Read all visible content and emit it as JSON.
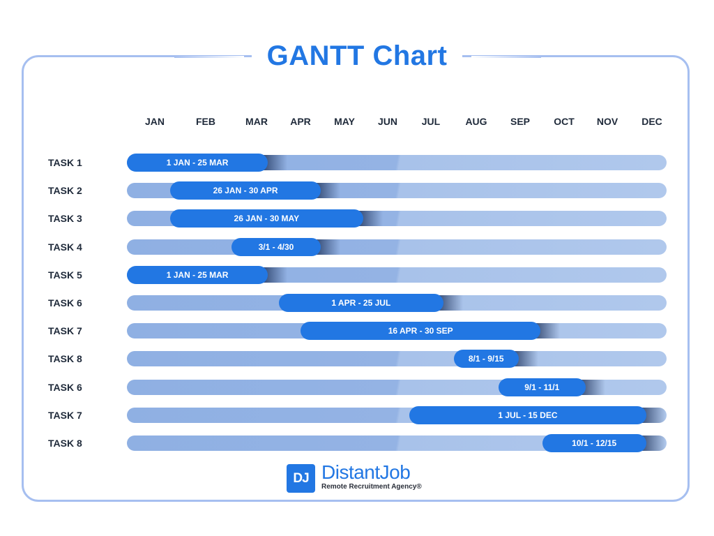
{
  "title": "GANTT Chart",
  "logo": {
    "mark": "DJ",
    "name": "DistantJob",
    "tagline": "Remote Recruitment Agency®"
  },
  "colors": {
    "bar": "#2277e3",
    "track": "#94b3e4",
    "title": "#2277e3",
    "frame": "#a6bff0"
  },
  "chart_data": {
    "type": "gantt",
    "title": "GANTT Chart",
    "months": [
      "JAN",
      "FEB",
      "MAR",
      "APR",
      "MAY",
      "JUN",
      "JUL",
      "AUG",
      "SEP",
      "OCT",
      "NOV",
      "DEC"
    ],
    "tasks": [
      {
        "name": "TASK 1",
        "label": "1 JAN - 25 MAR",
        "start": "01-01",
        "end": "03-25"
      },
      {
        "name": "TASK 2",
        "label": "26 JAN - 30 APR",
        "start": "01-26",
        "end": "04-30"
      },
      {
        "name": "TASK 3",
        "label": "26 JAN - 30 MAY",
        "start": "01-26",
        "end": "05-30"
      },
      {
        "name": "TASK 4",
        "label": "3/1 - 4/30",
        "start": "03-01",
        "end": "04-30"
      },
      {
        "name": "TASK 5",
        "label": "1 JAN - 25 MAR",
        "start": "01-01",
        "end": "03-25"
      },
      {
        "name": "TASK 6",
        "label": "1 APR - 25 JUL",
        "start": "04-01",
        "end": "07-25"
      },
      {
        "name": "TASK 7",
        "label": "16 APR - 30 SEP",
        "start": "04-16",
        "end": "09-30"
      },
      {
        "name": "TASK 8",
        "label": "8/1 - 9/15",
        "start": "08-01",
        "end": "09-15"
      },
      {
        "name": "TASK 6",
        "label": "9/1 - 11/1",
        "start": "09-01",
        "end": "11-01"
      },
      {
        "name": "TASK 7",
        "label": "1 JUL - 15 DEC",
        "start": "07-01",
        "end": "12-15"
      },
      {
        "name": "TASK 8",
        "label": "10/1 - 12/15",
        "start": "10-01",
        "end": "12-15"
      }
    ]
  }
}
